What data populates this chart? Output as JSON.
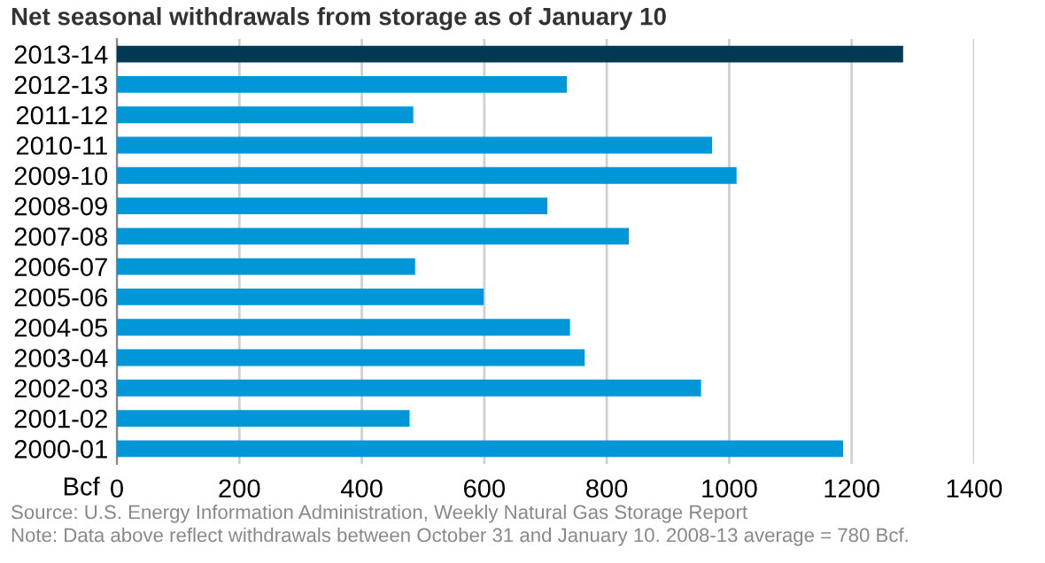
{
  "chart_data": {
    "type": "bar",
    "orientation": "horizontal",
    "title": "Net seasonal withdrawals from storage as of January 10",
    "xlabel": "Bcf",
    "categories": [
      "2013-14",
      "2012-13",
      "2011-12",
      "2010-11",
      "2009-10",
      "2008-09",
      "2007-08",
      "2006-07",
      "2005-06",
      "2004-05",
      "2003-04",
      "2002-03",
      "2001-02",
      "2000-01"
    ],
    "values": [
      1284,
      735,
      484,
      972,
      1012,
      703,
      836,
      487,
      599,
      740,
      764,
      954,
      478,
      1186
    ],
    "colors": [
      "#003953",
      "#0096d7",
      "#0096d7",
      "#0096d7",
      "#0096d7",
      "#0096d7",
      "#0096d7",
      "#0096d7",
      "#0096d7",
      "#0096d7",
      "#0096d7",
      "#0096d7",
      "#0096d7",
      "#0096d7"
    ],
    "xlim": [
      0,
      1400
    ],
    "xticks": [
      0,
      200,
      400,
      600,
      800,
      1000,
      1200,
      1400
    ],
    "grid": "x",
    "legend": false,
    "annotations": [
      "Source: U.S. Energy Information Administration, Weekly Natural Gas Storage Report",
      "Note: Data above reflect withdrawals between October 31 and January 10. 2008-13 average = 780 Bcf."
    ]
  }
}
